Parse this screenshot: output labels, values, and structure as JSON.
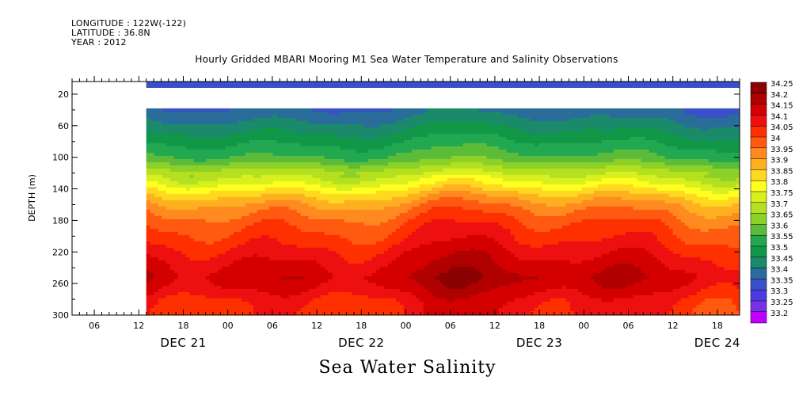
{
  "header": {
    "longitude": "LONGITUDE : 122W(-122)",
    "latitude": "LATITUDE : 36.8N",
    "year": "YEAR : 2012"
  },
  "bottom_title": "Sea Water Salinity",
  "chart_data": {
    "type": "heatmap",
    "title": "Hourly Gridded MBARI Mooring M1 Sea Water Temperature and Salinity Observations",
    "xlabel": "",
    "ylabel": "DEPTH (m)",
    "x_ticks_hours": [
      "06",
      "12",
      "18",
      "00",
      "06",
      "12",
      "18",
      "00",
      "06",
      "12",
      "18",
      "00",
      "06",
      "12",
      "18"
    ],
    "x_dates": [
      "DEC 21",
      "DEC 22",
      "DEC 23",
      "DEC 24"
    ],
    "y_ticks": [
      20,
      60,
      100,
      140,
      180,
      220,
      260,
      300
    ],
    "ylim": [
      300,
      4
    ],
    "x_range_hours": [
      3,
      93
    ],
    "data_start_hour": 13,
    "colorbar": {
      "labels": [
        "34.25",
        "34.2",
        "34.15",
        "34.1",
        "34.05",
        "34",
        "33.95",
        "33.9",
        "33.85",
        "33.8",
        "33.75",
        "33.7",
        "33.65",
        "33.6",
        "33.55",
        "33.5",
        "33.45",
        "33.4",
        "33.35",
        "33.3",
        "33.25",
        "33.2"
      ],
      "colors": [
        "#8b0000",
        "#b00000",
        "#d40000",
        "#ee1010",
        "#ff3000",
        "#ff5a10",
        "#ff8a20",
        "#ffb020",
        "#ffd820",
        "#ffff20",
        "#d8f020",
        "#b4e020",
        "#8cd028",
        "#5cbc3a",
        "#22a850",
        "#109848",
        "#1a8a6a",
        "#2a6c9a",
        "#3a50c8",
        "#4a3ce0",
        "#7a30e8",
        "#c000ff"
      ]
    },
    "profile": {
      "depths": [
        40,
        55,
        70,
        85,
        100,
        115,
        130,
        145,
        160,
        175,
        190,
        205,
        220,
        235,
        250,
        265,
        280,
        300
      ],
      "values": [
        33.42,
        33.47,
        33.52,
        33.57,
        33.62,
        33.72,
        33.8,
        33.9,
        33.98,
        34.03,
        34.07,
        34.1,
        34.14,
        34.17,
        34.2,
        34.17,
        34.12,
        34.1
      ]
    },
    "surface_band": {
      "depth_top": 4,
      "depth_bottom": 12,
      "value": 33.35
    },
    "gap_band": {
      "depth_top": 12,
      "depth_bottom": 38
    }
  }
}
